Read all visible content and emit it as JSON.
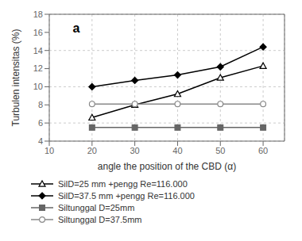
{
  "chart_data": {
    "type": "line",
    "x": [
      20,
      30,
      40,
      50,
      60
    ],
    "series": [
      {
        "name": "SilD=25 mm +pengg Re=116.000",
        "color": "#000000",
        "marker": "open-triangle",
        "values": [
          6.6,
          8.0,
          9.2,
          11.0,
          12.3
        ]
      },
      {
        "name": "SilD=37.5 mm +pengg Re=116.000",
        "color": "#000000",
        "marker": "diamond",
        "values": [
          10.0,
          10.7,
          11.3,
          12.2,
          14.4
        ]
      },
      {
        "name": "Siltunggal D=25mm",
        "color": "#666666",
        "marker": "square",
        "values": [
          5.5,
          5.5,
          5.5,
          5.5,
          5.5
        ]
      },
      {
        "name": "Siltunggal D=37.5mm",
        "color": "#888888",
        "marker": "open-circle",
        "values": [
          8.1,
          8.1,
          8.1,
          8.1,
          8.1
        ]
      }
    ],
    "xlabel": "angle the position of the CBD (α)",
    "ylabel": "Turbulen intensitas (%)",
    "xlim": [
      10,
      65
    ],
    "ylim": [
      4,
      18
    ],
    "xticks": [
      10,
      20,
      30,
      40,
      50,
      60
    ],
    "yticks": [
      4,
      6,
      8,
      10,
      12,
      14,
      16,
      18
    ],
    "annotation": "a",
    "grid": true,
    "legend": "bottom"
  }
}
